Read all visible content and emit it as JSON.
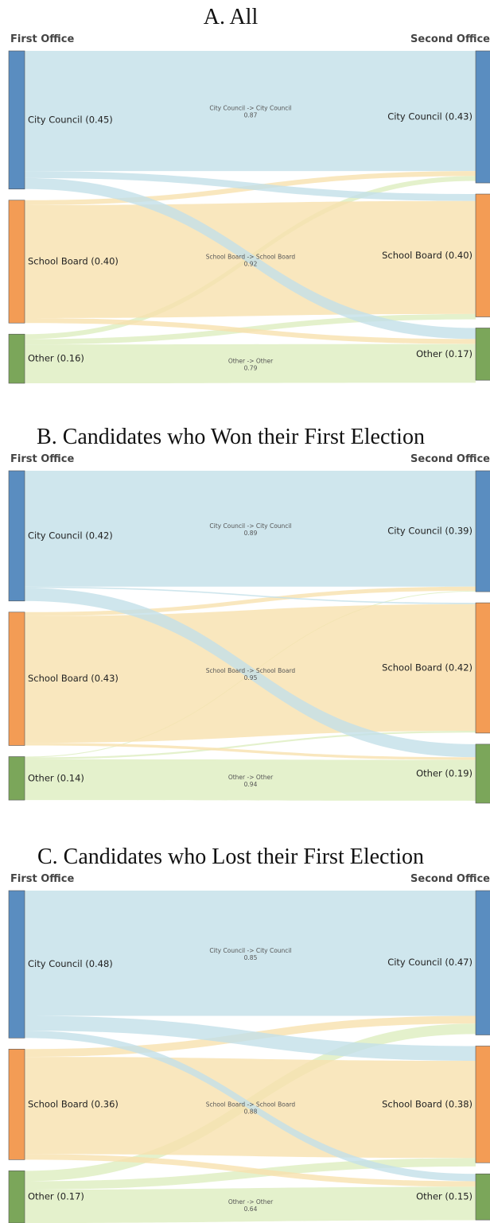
{
  "chart_data": [
    {
      "type": "sankey",
      "title": "A. All",
      "source_title": "First Office",
      "target_title": "Second Office",
      "sources": [
        {
          "label": "City Council (0.45)",
          "value": 0.45,
          "color": "#5a8dc0",
          "link_color": "#c3e0e8",
          "flows": [
            0.87,
            0.05,
            0.08
          ],
          "flow_labels": [
            "City Council -> City Council",
            null,
            null
          ]
        },
        {
          "label": "School Board (0.40)",
          "value": 0.4,
          "color": "#f39c55",
          "link_color": "#f8e1ae",
          "flows": [
            0.04,
            0.92,
            0.04
          ],
          "flow_labels": [
            null,
            "School Board -> School Board",
            null
          ]
        },
        {
          "label": "Other (0.16)",
          "value": 0.16,
          "color": "#7ba65a",
          "link_color": "#ddedbf",
          "flows": [
            0.1,
            0.11,
            0.79
          ],
          "flow_labels": [
            null,
            null,
            "Other -> Other"
          ]
        }
      ],
      "targets": [
        {
          "label": "City Council (0.43)",
          "value": 0.43,
          "color": "#5a8dc0"
        },
        {
          "label": "School Board (0.40)",
          "value": 0.4,
          "color": "#f39c55"
        },
        {
          "label": "Other (0.17)",
          "value": 0.17,
          "color": "#7ba65a"
        }
      ]
    },
    {
      "type": "sankey",
      "title": "B. Candidates who Won their First Election",
      "source_title": "First Office",
      "target_title": "Second Office",
      "sources": [
        {
          "label": "City Council (0.42)",
          "value": 0.42,
          "color": "#5a8dc0",
          "link_color": "#c3e0e8",
          "flows": [
            0.89,
            0.01,
            0.1
          ],
          "flow_labels": [
            "City Council -> City Council",
            null,
            null
          ]
        },
        {
          "label": "School Board (0.43)",
          "value": 0.43,
          "color": "#f39c55",
          "link_color": "#f8e1ae",
          "flows": [
            0.03,
            0.95,
            0.02
          ],
          "flow_labels": [
            null,
            "School Board -> School Board",
            null
          ]
        },
        {
          "label": "Other (0.14)",
          "value": 0.14,
          "color": "#7ba65a",
          "link_color": "#ddedbf",
          "flows": [
            0.02,
            0.04,
            0.94
          ],
          "flow_labels": [
            null,
            null,
            "Other -> Other"
          ]
        }
      ],
      "targets": [
        {
          "label": "City Council (0.39)",
          "value": 0.39,
          "color": "#5a8dc0"
        },
        {
          "label": "School Board (0.42)",
          "value": 0.42,
          "color": "#f39c55"
        },
        {
          "label": "Other (0.19)",
          "value": 0.19,
          "color": "#7ba65a"
        }
      ]
    },
    {
      "type": "sankey",
      "title": "C. Candidates who Lost their First Election",
      "source_title": "First Office",
      "target_title": "Second Office",
      "sources": [
        {
          "label": "City Council (0.48)",
          "value": 0.48,
          "color": "#5a8dc0",
          "link_color": "#c3e0e8",
          "flows": [
            0.85,
            0.1,
            0.05
          ],
          "flow_labels": [
            "City Council -> City Council",
            null,
            null
          ]
        },
        {
          "label": "School Board (0.36)",
          "value": 0.36,
          "color": "#f39c55",
          "link_color": "#f8e1ae",
          "flows": [
            0.07,
            0.88,
            0.05
          ],
          "flow_labels": [
            null,
            "School Board -> School Board",
            null
          ]
        },
        {
          "label": "Other (0.17)",
          "value": 0.17,
          "color": "#7ba65a",
          "link_color": "#ddedbf",
          "flows": [
            0.2,
            0.16,
            0.64
          ],
          "flow_labels": [
            null,
            null,
            "Other -> Other"
          ]
        }
      ],
      "targets": [
        {
          "label": "City Council (0.47)",
          "value": 0.47,
          "color": "#5a8dc0"
        },
        {
          "label": "School Board (0.38)",
          "value": 0.38,
          "color": "#f39c55"
        },
        {
          "label": "Other (0.15)",
          "value": 0.15,
          "color": "#7ba65a"
        }
      ]
    }
  ]
}
